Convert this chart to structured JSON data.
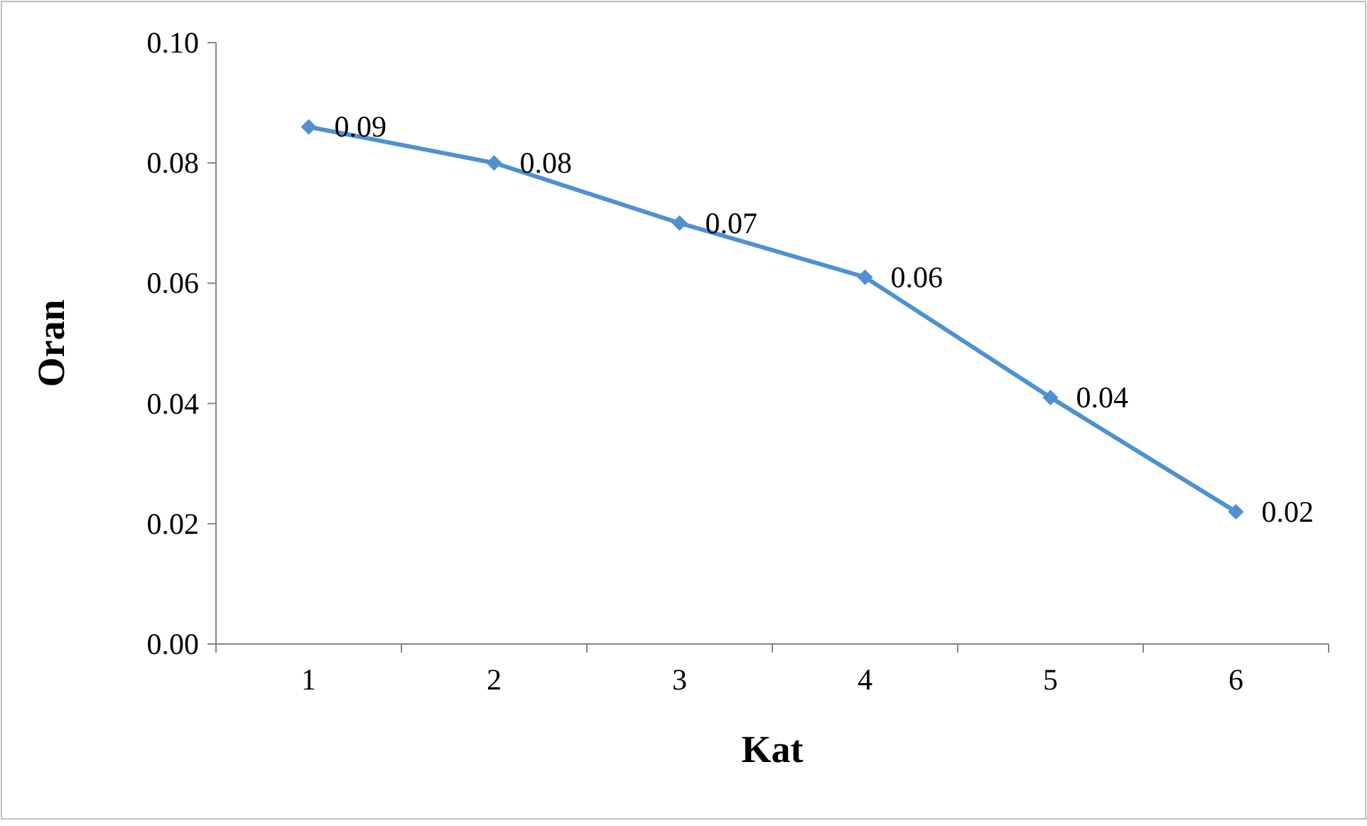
{
  "chart_data": {
    "type": "line",
    "xlabel": "Kat",
    "ylabel": "Oran",
    "categories": [
      "1",
      "2",
      "3",
      "4",
      "5",
      "6"
    ],
    "series": [
      {
        "color": "#4f91d0",
        "values": [
          0.086,
          0.08,
          0.07,
          0.061,
          0.041,
          0.022
        ],
        "value_labels": [
          "0.09",
          "0.08",
          "0.07",
          "0.06",
          "0.04",
          "0.02"
        ]
      }
    ],
    "ylim": [
      0,
      0.1
    ],
    "yticks": [
      {
        "value": 0,
        "label": "0.00"
      },
      {
        "value": 0.02,
        "label": "0.02"
      },
      {
        "value": 0.04,
        "label": "0.04"
      },
      {
        "value": 0.06,
        "label": "0.06"
      },
      {
        "value": 0.08,
        "label": "0.08"
      },
      {
        "value": 0.1,
        "label": "0.10"
      }
    ],
    "grid": false,
    "marker": "diamond",
    "line_style": "solid"
  }
}
